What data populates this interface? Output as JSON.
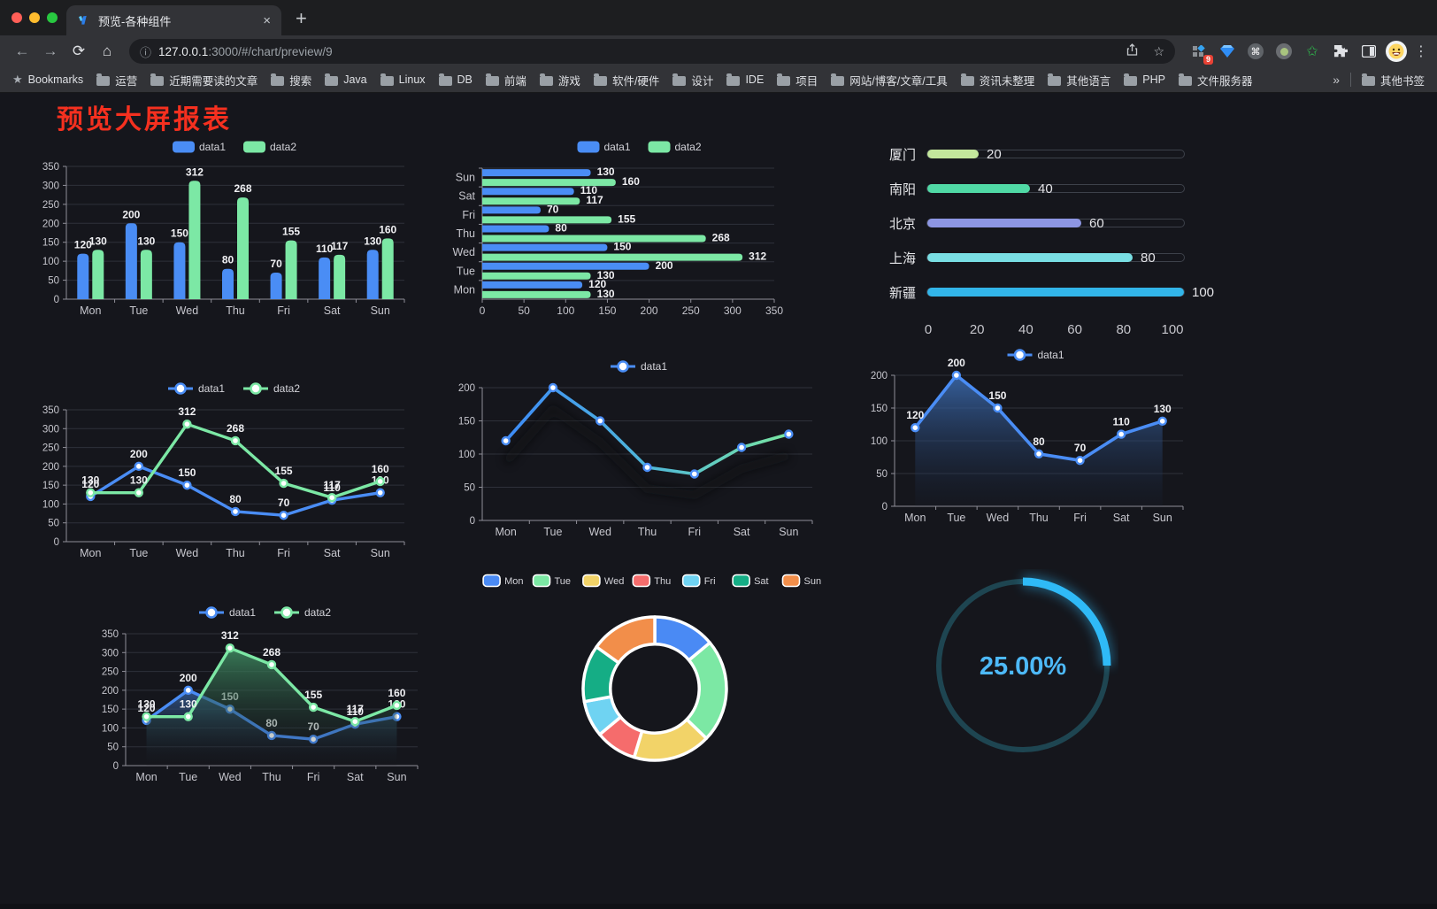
{
  "browser": {
    "traffic_lights": [
      "#ff5f57",
      "#febc2e",
      "#28c840"
    ],
    "tab": {
      "title": "预览-各种组件",
      "close_label": "×",
      "new_tab_label": "+"
    },
    "url": {
      "host": "127.0.0.1",
      "rest": ":3000/#/chart/preview/9"
    },
    "extension_badge": "9",
    "bookmarks_bar": {
      "items": [
        {
          "icon": "star",
          "label": "Bookmarks"
        },
        {
          "icon": "folder",
          "label": "运营"
        },
        {
          "icon": "folder",
          "label": "近期需要读的文章"
        },
        {
          "icon": "folder",
          "label": "搜索"
        },
        {
          "icon": "folder",
          "label": "Java"
        },
        {
          "icon": "folder",
          "label": "Linux"
        },
        {
          "icon": "folder",
          "label": "DB"
        },
        {
          "icon": "folder",
          "label": "前端"
        },
        {
          "icon": "folder",
          "label": "游戏"
        },
        {
          "icon": "folder",
          "label": "软件/硬件"
        },
        {
          "icon": "folder",
          "label": "设计"
        },
        {
          "icon": "folder",
          "label": "IDE"
        },
        {
          "icon": "folder",
          "label": "项目"
        },
        {
          "icon": "folder",
          "label": "网站/博客/文章/工具"
        },
        {
          "icon": "folder",
          "label": "资讯未整理"
        },
        {
          "icon": "folder",
          "label": "其他语言"
        },
        {
          "icon": "folder",
          "label": "PHP"
        },
        {
          "icon": "folder",
          "label": "文件服务器"
        }
      ],
      "overflow_label": "»",
      "other_bookmarks_label": "其他书签"
    }
  },
  "page": {
    "heading": "预览大屏报表",
    "heading_color": "#f5301f",
    "background": "#15161c"
  },
  "chart_data": [
    {
      "type": "bar",
      "title": "grouped vertical bars",
      "categories": [
        "Mon",
        "Tue",
        "Wed",
        "Thu",
        "Fri",
        "Sat",
        "Sun"
      ],
      "series": [
        {
          "name": "data1",
          "color": "#4a8df5",
          "values": [
            120,
            200,
            150,
            80,
            70,
            110,
            130
          ]
        },
        {
          "name": "data2",
          "color": "#7ce8a5",
          "values": [
            130,
            130,
            312,
            268,
            155,
            117,
            160
          ]
        }
      ],
      "ylim": [
        0,
        350
      ],
      "ytick": 50,
      "legend_position": "top",
      "grid": true
    },
    {
      "type": "bar",
      "title": "grouped horizontal bars",
      "orientation": "horizontal",
      "categories": [
        "Mon",
        "Tue",
        "Wed",
        "Thu",
        "Fri",
        "Sat",
        "Sun"
      ],
      "categories_displayed_top_to_bottom": [
        "Sun",
        "Sat",
        "Fri",
        "Thu",
        "Wed",
        "Tue",
        "Mon"
      ],
      "series": [
        {
          "name": "data1",
          "color": "#4a8df5",
          "values": [
            120,
            200,
            150,
            80,
            70,
            110,
            130
          ]
        },
        {
          "name": "data2",
          "color": "#7ce8a5",
          "values": [
            130,
            130,
            312,
            268,
            155,
            117,
            160
          ]
        }
      ],
      "xlim": [
        0,
        350
      ],
      "xtick": 50,
      "legend_position": "top",
      "grid": true
    },
    {
      "type": "bar",
      "title": "progress bars",
      "orientation": "horizontal-progress",
      "rows": [
        {
          "label": "厦门",
          "value": 20,
          "color": "#c3e79c"
        },
        {
          "label": "南阳",
          "value": 40,
          "color": "#50d9a5"
        },
        {
          "label": "北京",
          "value": 60,
          "color": "#8d96e3"
        },
        {
          "label": "上海",
          "value": 80,
          "color": "#79dee3"
        },
        {
          "label": "新疆",
          "value": 100,
          "color": "#32b5e9"
        }
      ],
      "xlim": [
        0,
        100
      ],
      "xticks": [
        0,
        20,
        40,
        60,
        80,
        100
      ]
    },
    {
      "type": "line",
      "title": "two lines",
      "categories": [
        "Mon",
        "Tue",
        "Wed",
        "Thu",
        "Fri",
        "Sat",
        "Sun"
      ],
      "series": [
        {
          "name": "data1",
          "color": "#4a8df5",
          "values": [
            120,
            200,
            150,
            80,
            70,
            110,
            130
          ]
        },
        {
          "name": "data2",
          "color": "#7ce8a5",
          "values": [
            130,
            130,
            312,
            268,
            155,
            117,
            160
          ]
        }
      ],
      "ylim": [
        0,
        350
      ],
      "ytick": 50,
      "labels": true,
      "legend_position": "top",
      "grid": true
    },
    {
      "type": "line",
      "title": "gradient line",
      "categories": [
        "Mon",
        "Tue",
        "Wed",
        "Thu",
        "Fri",
        "Sat",
        "Sun"
      ],
      "series": [
        {
          "name": "data1",
          "color": "#4a8df5",
          "gradient": [
            "#3d8bf8",
            "#4fb7d9",
            "#79e6a2"
          ],
          "values": [
            120,
            200,
            150,
            80,
            70,
            110,
            130
          ]
        }
      ],
      "ylim": [
        0,
        200
      ],
      "ytick": 50,
      "labels": false,
      "legend_position": "top",
      "grid": true
    },
    {
      "type": "area",
      "title": "single area",
      "categories": [
        "Mon",
        "Tue",
        "Wed",
        "Thu",
        "Fri",
        "Sat",
        "Sun"
      ],
      "series": [
        {
          "name": "data1",
          "color": "#4a8df5",
          "area_top": "#3c6db3",
          "values": [
            120,
            200,
            150,
            80,
            70,
            110,
            130
          ]
        }
      ],
      "ylim": [
        0,
        200
      ],
      "ytick": 50,
      "labels": true,
      "legend_position": "top",
      "grid": true
    },
    {
      "type": "area",
      "title": "two areas",
      "categories": [
        "Mon",
        "Tue",
        "Wed",
        "Thu",
        "Fri",
        "Sat",
        "Sun"
      ],
      "series": [
        {
          "name": "data1",
          "color": "#4a8df5",
          "area_top": "#36619e",
          "values": [
            120,
            200,
            150,
            80,
            70,
            110,
            130
          ]
        },
        {
          "name": "data2",
          "color": "#7ce8a5",
          "area_top": "#3f8d62",
          "values": [
            130,
            130,
            312,
            268,
            155,
            117,
            160
          ]
        }
      ],
      "ylim": [
        0,
        350
      ],
      "ytick": 50,
      "labels": true,
      "legend_position": "top",
      "grid": true
    },
    {
      "type": "pie",
      "title": "donut",
      "categories": [
        "Mon",
        "Tue",
        "Wed",
        "Thu",
        "Fri",
        "Sat",
        "Sun"
      ],
      "values": [
        120,
        200,
        150,
        80,
        70,
        110,
        130
      ],
      "colors": [
        "#4a8af4",
        "#7ce8a4",
        "#f2d368",
        "#f56c6c",
        "#6fd3f2",
        "#15ad85",
        "#f28e4a"
      ],
      "inner_radius_ratio": 0.62,
      "border_color": "#ffffff",
      "legend_position": "top"
    },
    {
      "type": "gauge",
      "title": "ring progress",
      "percent": 25,
      "value_label": "25.00%",
      "color": "#2fbaf7",
      "track_color": "#1e4551",
      "text_color": "#4db9f8"
    }
  ]
}
